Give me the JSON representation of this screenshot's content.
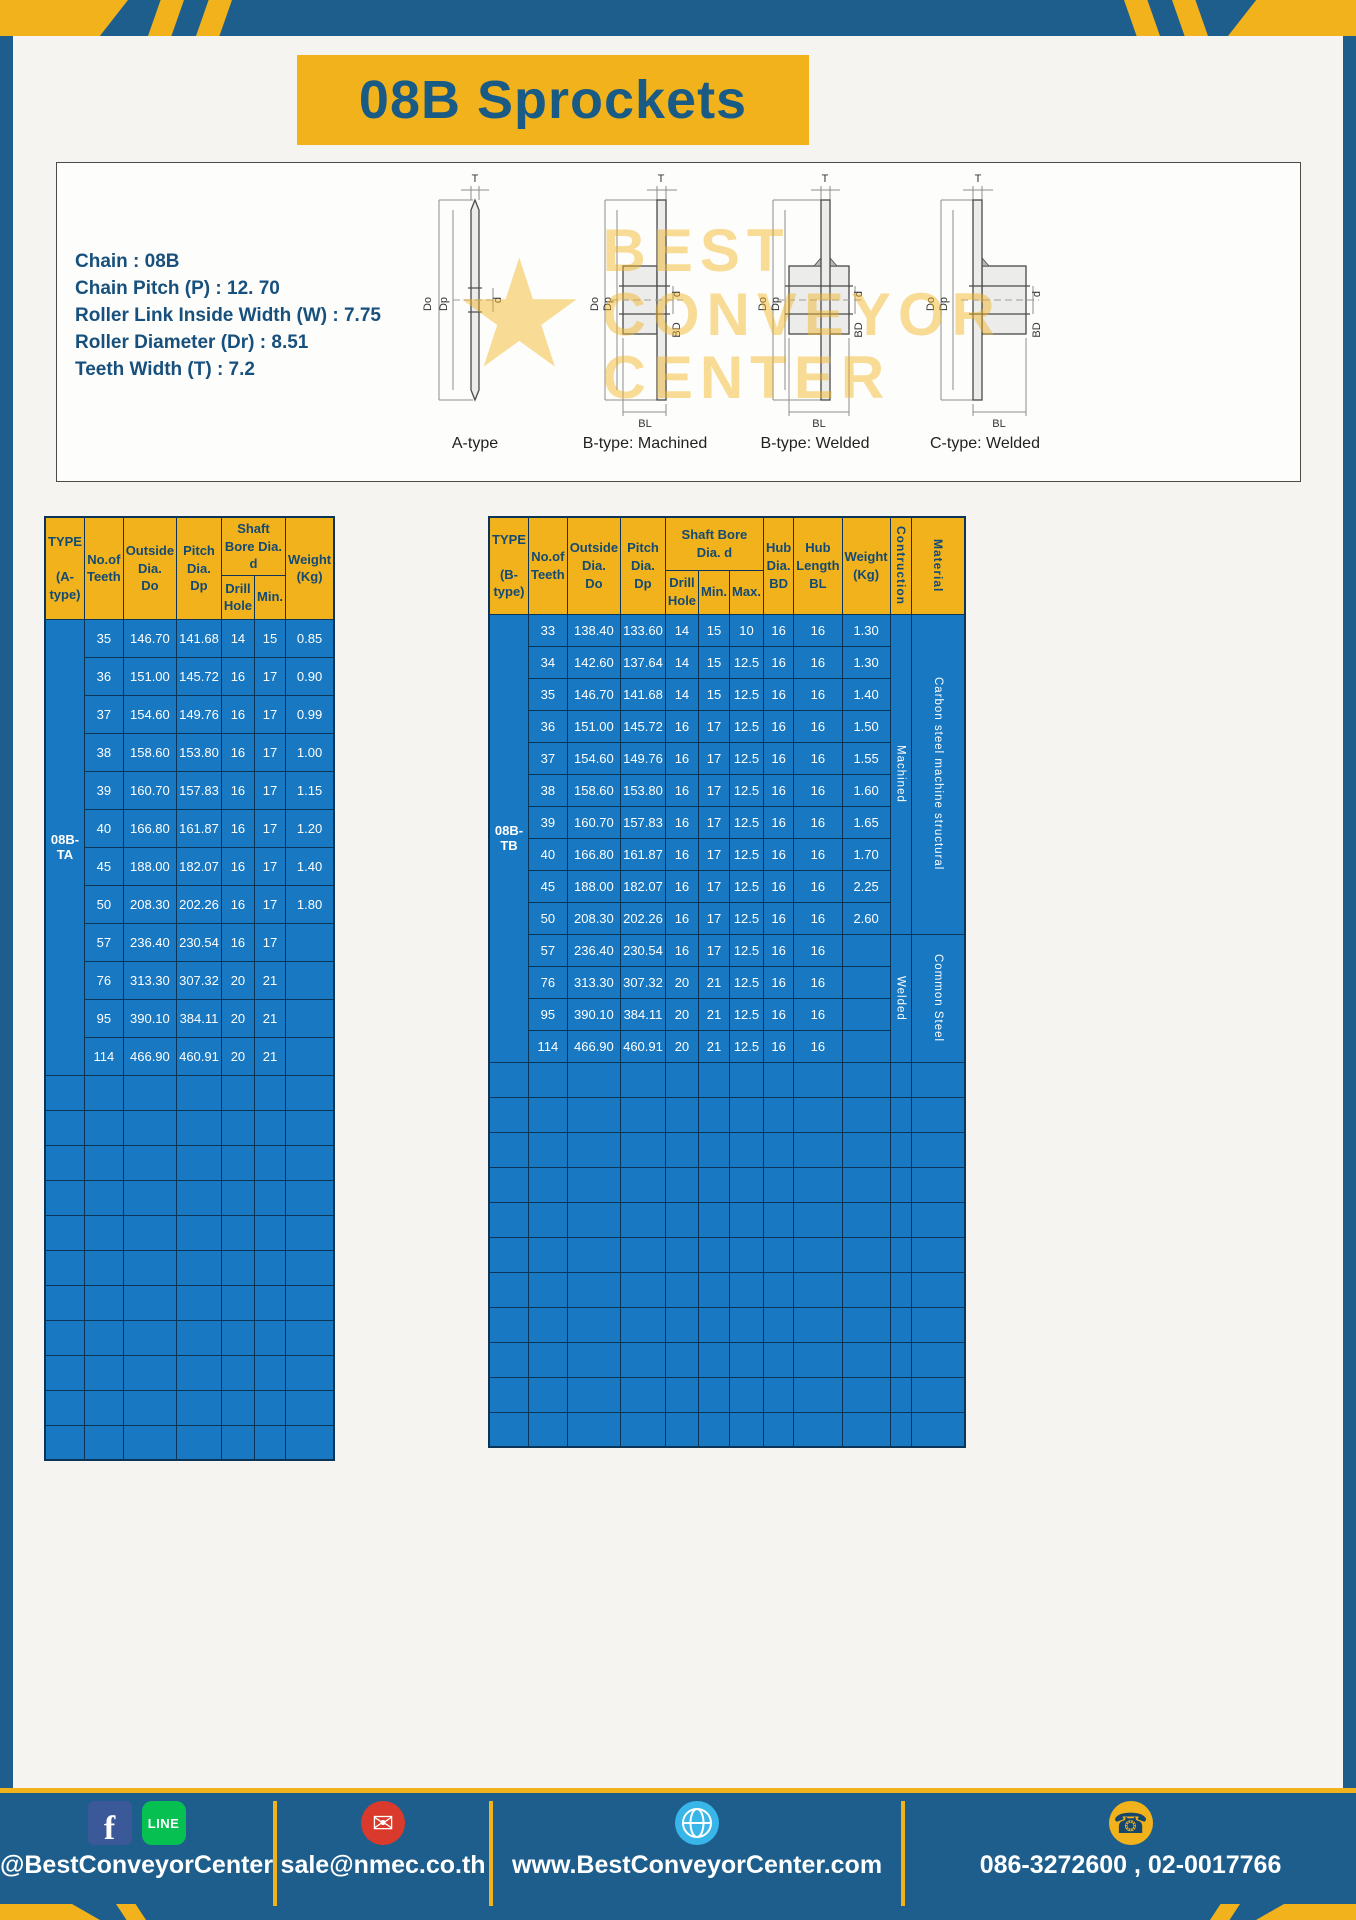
{
  "page": {
    "title": "08B Sprockets"
  },
  "specs": {
    "chain": "Chain : 08B",
    "pitch": "Chain Pitch (P) : 12. 70",
    "roller_width": "Roller Link Inside Width (W) : 7.75",
    "roller_dia": "Roller Diameter (Dr) : 8.51",
    "teeth_width": "Teeth Width (T) : 7.2"
  },
  "watermark": {
    "star": "★",
    "line1": "BEST",
    "line2": "CONVEYOR",
    "line3": "CENTER"
  },
  "drawings": {
    "figures": [
      {
        "label": "A-type",
        "dims": {
          "t": "T",
          "do": "Do",
          "dp": "Dp",
          "d": "d"
        }
      },
      {
        "label": "B-type: Machined",
        "dims": {
          "t": "T",
          "do": "Do",
          "dp": "Dp",
          "d": "d",
          "bd": "BD",
          "bl": "BL"
        }
      },
      {
        "label": "B-type: Welded",
        "dims": {
          "t": "T",
          "do": "Do",
          "dp": "Dp",
          "d": "d",
          "bd": "BD",
          "bl": "BL"
        }
      },
      {
        "label": "C-type: Welded",
        "dims": {
          "t": "T",
          "do": "Do",
          "dp": "Dp",
          "d": "d",
          "bd": "BD",
          "bl": "BL"
        }
      }
    ]
  },
  "table_a": {
    "header": {
      "type": "TYPE\n\n(A-type)",
      "teeth": "No.of\nTeeth",
      "outside": "Outside\nDia.\nDo",
      "pitch": "Pitch Dia.\nDp",
      "shaft_bore": "Shaft Bore Dia. d",
      "drill": "Drill Hole",
      "min": "Min.",
      "weight": "Weight\n(Kg)"
    },
    "type_value": "08B-TA",
    "rows": [
      [
        "35",
        "146.70",
        "141.68",
        "14",
        "15",
        "0.85"
      ],
      [
        "36",
        "151.00",
        "145.72",
        "16",
        "17",
        "0.90"
      ],
      [
        "37",
        "154.60",
        "149.76",
        "16",
        "17",
        "0.99"
      ],
      [
        "38",
        "158.60",
        "153.80",
        "16",
        "17",
        "1.00"
      ],
      [
        "39",
        "160.70",
        "157.83",
        "16",
        "17",
        "1.15"
      ],
      [
        "40",
        "166.80",
        "161.87",
        "16",
        "17",
        "1.20"
      ],
      [
        "45",
        "188.00",
        "182.07",
        "16",
        "17",
        "1.40"
      ],
      [
        "50",
        "208.30",
        "202.26",
        "16",
        "17",
        "1.80"
      ],
      [
        "57",
        "236.40",
        "230.54",
        "16",
        "17",
        ""
      ],
      [
        "76",
        "313.30",
        "307.32",
        "20",
        "21",
        ""
      ],
      [
        "95",
        "390.10",
        "384.11",
        "20",
        "21",
        ""
      ],
      [
        "114",
        "466.90",
        "460.91",
        "20",
        "21",
        ""
      ]
    ],
    "empty_rows": 11
  },
  "table_b": {
    "header": {
      "type": "TYPE\n\n(B-type)",
      "teeth": "No.of\nTeeth",
      "outside": "Outside\nDia.\nDo",
      "pitch": "Pitch Dia.\nDp",
      "shaft_bore": "Shaft Bore Dia. d",
      "drill": "Drill Hole",
      "min": "Min.",
      "max": "Max.",
      "hub_dia": "Hub Dia.\nBD",
      "hub_len": "Hub\nLength\nBL",
      "weight": "Weight\n(Kg)",
      "construction": "Contruction",
      "material": "Material"
    },
    "type_value": "08B-TB",
    "rows": [
      [
        "33",
        "138.40",
        "133.60",
        "14",
        "15",
        "10",
        "16",
        "16",
        "1.30"
      ],
      [
        "34",
        "142.60",
        "137.64",
        "14",
        "15",
        "12.5",
        "16",
        "16",
        "1.30"
      ],
      [
        "35",
        "146.70",
        "141.68",
        "14",
        "15",
        "12.5",
        "16",
        "16",
        "1.40"
      ],
      [
        "36",
        "151.00",
        "145.72",
        "16",
        "17",
        "12.5",
        "16",
        "16",
        "1.50"
      ],
      [
        "37",
        "154.60",
        "149.76",
        "16",
        "17",
        "12.5",
        "16",
        "16",
        "1.55"
      ],
      [
        "38",
        "158.60",
        "153.80",
        "16",
        "17",
        "12.5",
        "16",
        "16",
        "1.60"
      ],
      [
        "39",
        "160.70",
        "157.83",
        "16",
        "17",
        "12.5",
        "16",
        "16",
        "1.65"
      ],
      [
        "40",
        "166.80",
        "161.87",
        "16",
        "17",
        "12.5",
        "16",
        "16",
        "1.70"
      ],
      [
        "45",
        "188.00",
        "182.07",
        "16",
        "17",
        "12.5",
        "16",
        "16",
        "2.25"
      ],
      [
        "50",
        "208.30",
        "202.26",
        "16",
        "17",
        "12.5",
        "16",
        "16",
        "2.60"
      ],
      [
        "57",
        "236.40",
        "230.54",
        "16",
        "17",
        "12.5",
        "16",
        "16",
        ""
      ],
      [
        "76",
        "313.30",
        "307.32",
        "20",
        "21",
        "12.5",
        "16",
        "16",
        ""
      ],
      [
        "95",
        "390.10",
        "384.11",
        "20",
        "21",
        "12.5",
        "16",
        "16",
        ""
      ],
      [
        "114",
        "466.90",
        "460.91",
        "20",
        "21",
        "12.5",
        "16",
        "16",
        ""
      ]
    ],
    "construction_groups": [
      {
        "label": "Machined",
        "span": 10
      },
      {
        "label": "Welded",
        "span": 4
      }
    ],
    "material_groups": [
      {
        "label": "Carbon steel  machine structural",
        "span": 10
      },
      {
        "label": "Common  Steel",
        "span": 4
      }
    ],
    "empty_rows": 11
  },
  "footer": {
    "facebook_glyph": "f",
    "line_glyph": "LINE",
    "mail_glyph": "✉",
    "phone_glyph": "☎",
    "social_handle": "@BestConveyorCenter",
    "email": "sale@nmec.co.th",
    "website": "www.BestConveyorCenter.com",
    "phone": "086-3272600 , 02-0017766"
  }
}
